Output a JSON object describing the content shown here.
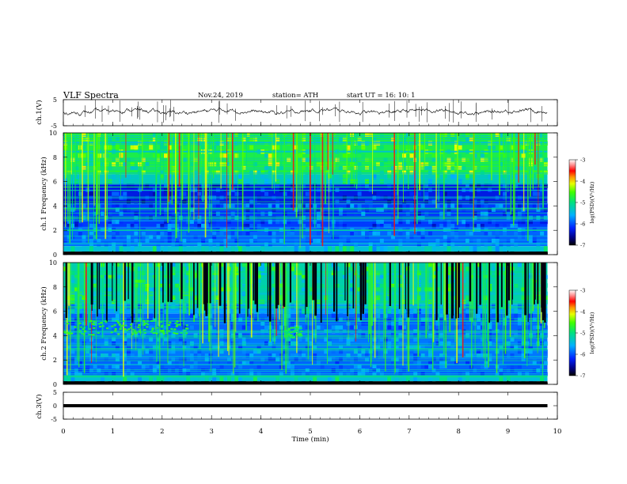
{
  "header": {
    "title": "VLF  Spectra",
    "date": "Nov.24, 2019",
    "station": "station= ATH",
    "start": "start  UT  =    16: 10: 1"
  },
  "chart_data": [
    {
      "type": "line",
      "panel": "ch1_waveform",
      "ylabel": "ch.1(V)",
      "ylim": [
        -5,
        5
      ],
      "yticks": [
        5,
        -5
      ],
      "xlim": [
        0,
        10
      ],
      "baseline": 0.5,
      "noise_amplitude": 1.0,
      "spikes_visible": true
    },
    {
      "type": "heatmap",
      "panel": "ch1_spectrogram",
      "ylabel": "ch.1  Frequency  (kHz)",
      "ylim": [
        0,
        10
      ],
      "yticks": [
        0,
        2,
        4,
        6,
        8,
        10
      ],
      "xlim": [
        0,
        10
      ],
      "data_end_min": 9.8,
      "colorbar": {
        "label": "log(PSD)(V²/Hz)",
        "range": [
          -7,
          -3
        ],
        "ticks": [
          -3,
          -4,
          -5,
          -6,
          -7
        ]
      },
      "features": [
        {
          "name": "upper band 6.5-10 kHz",
          "level": -4.8
        },
        {
          "name": "mid band 4-6 kHz",
          "level": -6.3
        },
        {
          "name": "low band 1-4 kHz",
          "level": -6.1
        },
        {
          "name": "below 0.5 kHz",
          "level": -7.0
        }
      ]
    },
    {
      "type": "heatmap",
      "panel": "ch2_spectrogram",
      "ylabel": "ch.2  Frequency  (kHz)",
      "ylim": [
        0,
        10
      ],
      "yticks": [
        0,
        2,
        4,
        6,
        8,
        10
      ],
      "xlim": [
        0,
        10
      ],
      "data_end_min": 9.8,
      "colorbar": {
        "label": "log(PSD)(V²/Hz)",
        "range": [
          -7,
          -3
        ],
        "ticks": [
          -3,
          -4,
          -5,
          -6,
          -7
        ]
      },
      "features": [
        {
          "name": "upper band 6.5-10 kHz",
          "level": -5.2
        },
        {
          "name": "noise 4-5 kHz early",
          "level": -4.9
        },
        {
          "name": "patch near 4.7 min",
          "level": -5.0
        },
        {
          "name": "below 0.5 kHz",
          "level": -7.0
        }
      ]
    },
    {
      "type": "line",
      "panel": "ch3_waveform",
      "ylabel": "ch.3(V)",
      "ylim": [
        -5,
        5
      ],
      "yticks": [
        5,
        0,
        -5
      ],
      "xlim": [
        0,
        10
      ],
      "level": 0
    },
    {
      "type": "axis",
      "xlabel": "Time  (min)",
      "xticks": [
        0,
        1,
        2,
        3,
        4,
        5,
        6,
        7,
        8,
        9,
        10
      ]
    }
  ]
}
